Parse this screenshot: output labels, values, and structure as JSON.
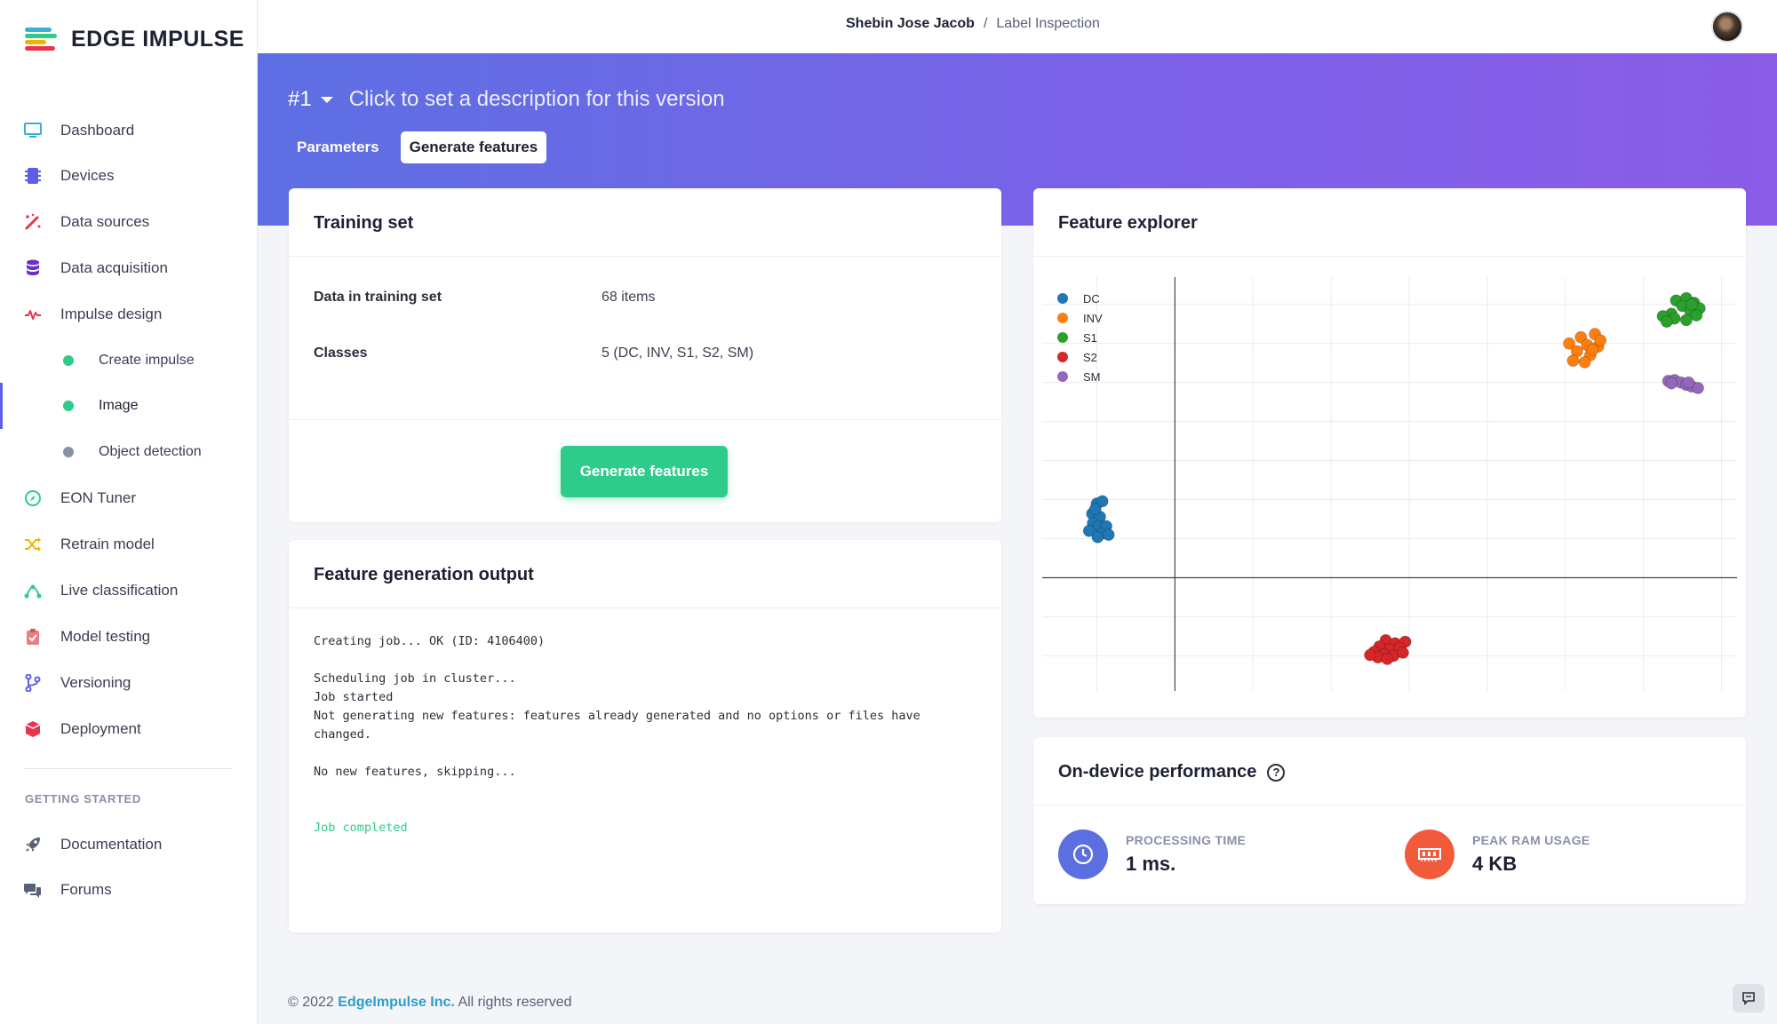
{
  "brand": {
    "name": "EDGE IMPULSE"
  },
  "sidebar": {
    "items": [
      {
        "label": "Dashboard",
        "icon": "monitor-icon",
        "color": "#3ab0d8"
      },
      {
        "label": "Devices",
        "icon": "chip-icon",
        "color": "#5b5fe8"
      },
      {
        "label": "Data sources",
        "icon": "wand-icon",
        "color": "#e8344e"
      },
      {
        "label": "Data acquisition",
        "icon": "database-icon",
        "color": "#6a2fc4"
      },
      {
        "label": "Impulse design",
        "icon": "pulse-icon",
        "color": "#e8344e"
      },
      {
        "label": "Create impulse",
        "sub": true,
        "dot": "#2ecc8a"
      },
      {
        "label": "Image",
        "sub": true,
        "dot": "#2ecc8a",
        "active": true
      },
      {
        "label": "Object detection",
        "sub": true,
        "dot": "#8a90a6"
      },
      {
        "label": "EON Tuner",
        "icon": "compass-icon",
        "color": "#2ecc8a"
      },
      {
        "label": "Retrain model",
        "icon": "shuffle-icon",
        "color": "#f0b400"
      },
      {
        "label": "Live classification",
        "icon": "nodes-icon",
        "color": "#2ecc8a"
      },
      {
        "label": "Model testing",
        "icon": "clipboard-icon",
        "color": "#e88080"
      },
      {
        "label": "Versioning",
        "icon": "branch-icon",
        "color": "#5b5fe8"
      },
      {
        "label": "Deployment",
        "icon": "cube-icon",
        "color": "#e8344e"
      }
    ],
    "section_title": "GETTING STARTED",
    "extra": [
      {
        "label": "Documentation",
        "icon": "rocket-icon"
      },
      {
        "label": "Forums",
        "icon": "chat-bubbles-icon"
      }
    ]
  },
  "topbar": {
    "user": "Shebin Jose Jacob",
    "separator": "/",
    "project": "Label Inspection"
  },
  "header": {
    "version": "#1",
    "description": "Click to set a description for this version",
    "tabs": [
      "Parameters",
      "Generate features"
    ]
  },
  "training": {
    "title": "Training set",
    "rows": [
      {
        "key": "Data in training set",
        "value": "68 items"
      },
      {
        "key": "Classes",
        "value": "5 (DC, INV, S1, S2, SM)"
      }
    ],
    "button": "Generate features"
  },
  "output": {
    "title": "Feature generation output",
    "lines": [
      "Creating job... OK (ID: 4106400)",
      "",
      "Scheduling job in cluster...",
      "Job started",
      "Not generating new features: features already generated and no options or files have",
      "changed.",
      "",
      "No new features, skipping...",
      "",
      "",
      "Job completed"
    ]
  },
  "explorer": {
    "title": "Feature explorer"
  },
  "chart_data": {
    "type": "scatter",
    "grid": true,
    "legend_position": "top-left",
    "xlim": [
      -1.7,
      7.2
    ],
    "ylim": [
      -1.45,
      3.85
    ],
    "series": [
      {
        "name": "DC",
        "color": "#1f77b4",
        "points": [
          [
            -1.0,
            0.95
          ],
          [
            -0.93,
            0.98
          ],
          [
            -1.06,
            0.82
          ],
          [
            -0.96,
            0.78
          ],
          [
            -1.05,
            0.7
          ],
          [
            -0.98,
            0.66
          ],
          [
            -0.88,
            0.66
          ],
          [
            -1.1,
            0.6
          ],
          [
            -0.95,
            0.56
          ],
          [
            -0.85,
            0.55
          ],
          [
            -0.99,
            0.52
          ],
          [
            -1.02,
            0.88
          ]
        ]
      },
      {
        "name": "INV",
        "color": "#ff7f0e",
        "points": [
          [
            5.2,
            3.08
          ],
          [
            5.38,
            3.12
          ],
          [
            5.05,
            3.0
          ],
          [
            5.28,
            2.98
          ],
          [
            5.42,
            2.96
          ],
          [
            5.15,
            2.9
          ],
          [
            5.32,
            2.85
          ],
          [
            5.1,
            2.78
          ],
          [
            5.25,
            2.76
          ],
          [
            5.45,
            3.04
          ],
          [
            5.35,
            2.92
          ]
        ]
      },
      {
        "name": "S1",
        "color": "#2ca02c",
        "points": [
          [
            6.42,
            3.55
          ],
          [
            6.55,
            3.58
          ],
          [
            6.65,
            3.52
          ],
          [
            6.5,
            3.48
          ],
          [
            6.72,
            3.45
          ],
          [
            6.6,
            3.42
          ],
          [
            6.36,
            3.38
          ],
          [
            6.68,
            3.36
          ],
          [
            6.4,
            3.32
          ],
          [
            6.55,
            3.3
          ],
          [
            6.25,
            3.35
          ],
          [
            6.3,
            3.28
          ],
          [
            6.62,
            3.5
          ]
        ]
      },
      {
        "name": "S2",
        "color": "#d62728",
        "points": [
          [
            2.7,
            -0.8
          ],
          [
            2.82,
            -0.84
          ],
          [
            2.95,
            -0.82
          ],
          [
            2.62,
            -0.88
          ],
          [
            2.75,
            -0.92
          ],
          [
            2.88,
            -0.9
          ],
          [
            2.55,
            -0.95
          ],
          [
            2.68,
            -0.98
          ],
          [
            2.8,
            -1.0
          ],
          [
            2.6,
            -1.02
          ],
          [
            2.92,
            -0.96
          ],
          [
            2.72,
            -1.04
          ],
          [
            2.5,
            -0.99
          ]
        ]
      },
      {
        "name": "SM",
        "color": "#9467bd",
        "points": [
          [
            6.32,
            2.52
          ],
          [
            6.4,
            2.53
          ],
          [
            6.48,
            2.5
          ],
          [
            6.55,
            2.47
          ],
          [
            6.62,
            2.45
          ],
          [
            6.7,
            2.43
          ],
          [
            6.36,
            2.49
          ],
          [
            6.58,
            2.5
          ]
        ]
      }
    ]
  },
  "perf": {
    "title": "On-device performance",
    "metrics": [
      {
        "label": "PROCESSING TIME",
        "value": "1 ms.",
        "color": "#5b6fe0",
        "icon": "clock-icon"
      },
      {
        "label": "PEAK RAM USAGE",
        "value": "4 KB",
        "color": "#f25a3c",
        "icon": "memory-icon"
      }
    ]
  },
  "footer": {
    "copyright": "© 2022",
    "company": "EdgeImpulse Inc.",
    "rights": "All rights reserved"
  }
}
